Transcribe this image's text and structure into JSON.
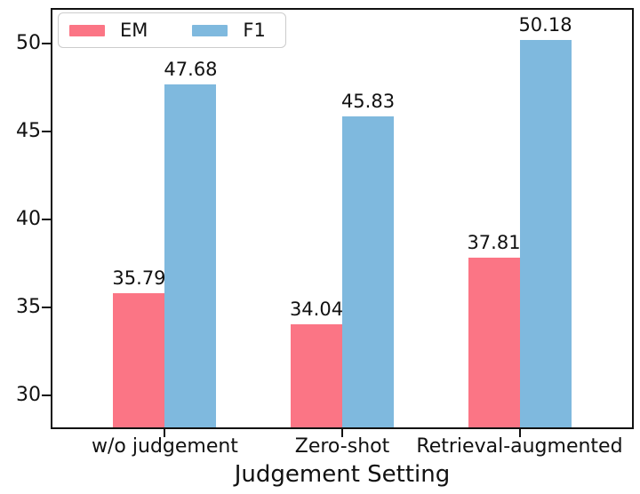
{
  "chart_data": {
    "type": "bar",
    "title": "",
    "xlabel": "Judgement Setting",
    "ylabel": "",
    "categories": [
      "w/o judgement",
      "Zero-shot",
      "Retrieval-augmented"
    ],
    "series": [
      {
        "name": "EM",
        "color": "#FB7585",
        "values": [
          35.79,
          34.04,
          37.81
        ]
      },
      {
        "name": "F1",
        "color": "#7FB9DE",
        "values": [
          47.68,
          45.83,
          50.18
        ]
      }
    ],
    "bar_value_labels": {
      "EM": [
        "35.79",
        "34.04",
        "37.81"
      ],
      "F1": [
        "47.68",
        "45.83",
        "50.18"
      ]
    },
    "ylim": [
      28.2,
      51.9
    ],
    "yticks": [
      30,
      35,
      40,
      45,
      50
    ],
    "ytick_labels": [
      "30",
      "35",
      "40",
      "45",
      "50"
    ],
    "grid": false,
    "legend_position": "upper left",
    "colors": {
      "em_bar": "#FB7585",
      "f1_bar": "#7FB9DE",
      "axis": "#111111",
      "legend_border": "#cccccc",
      "background": "#ffffff"
    }
  }
}
